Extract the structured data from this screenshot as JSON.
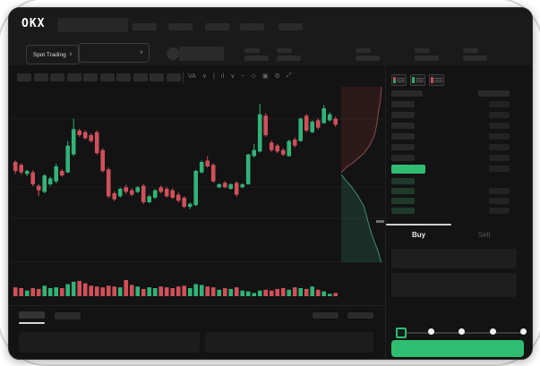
{
  "header": {
    "logo": "OKX",
    "market_selector_label": "Spot Trading"
  },
  "glyphs": {
    "chevron_down": "∨"
  },
  "toolbar": {
    "icons": [
      {
        "name": "indicator-label",
        "glyph": "VA"
      },
      {
        "name": "chevron-down-icon",
        "glyph": "∨"
      },
      {
        "name": "divider",
        "glyph": "|"
      },
      {
        "name": "candle-style-icon",
        "glyph": "ıl"
      },
      {
        "name": "chevron-down-icon",
        "glyph": "∨"
      },
      {
        "name": "line-type-icon",
        "glyph": "~"
      },
      {
        "name": "draw-icon",
        "glyph": "◇"
      },
      {
        "name": "camera-icon",
        "glyph": "▣"
      },
      {
        "name": "settings-icon",
        "glyph": "⚙"
      },
      {
        "name": "fullscreen-icon",
        "glyph": "⤢"
      }
    ]
  },
  "orderbook": {
    "view_modes": [
      "combined-book-icon",
      "bids-book-icon",
      "asks-book-icon"
    ],
    "ask_rows": 6,
    "bid_rows": 4
  },
  "trade_panel": {
    "buy_label": "Buy",
    "sell_label": "Sell",
    "slider_steps": 5
  },
  "colors": {
    "accent_green": "#2fbe71",
    "candle_up": "#32b377",
    "candle_down": "#d0505a",
    "bid_row_tint": "#1f3a2b",
    "ask_row_tint": "#282828",
    "amount_bar": "#232323",
    "depth_ask_fill": "rgba(140,50,55,0.22)",
    "depth_ask_line": "#8c4a50",
    "depth_bid_fill": "rgba(35,110,85,0.30)",
    "depth_bid_line": "#3f8f78"
  },
  "chart_data": {
    "type": "candlestick",
    "price_range": [
      0,
      100
    ],
    "grid": true,
    "legend": false,
    "candles": [
      [
        46.9,
        47.9,
        38.5,
        40.6
      ],
      [
        44.8,
        46.0,
        38.0,
        39.6
      ],
      [
        38.5,
        41.5,
        37.0,
        40.6
      ],
      [
        39.6,
        41.0,
        30.0,
        31.3
      ],
      [
        30.2,
        31.5,
        22.9,
        27.1
      ],
      [
        26.0,
        38.5,
        25.0,
        37.5
      ],
      [
        31.3,
        36.5,
        30.0,
        35.4
      ],
      [
        33.3,
        45.8,
        32.0,
        43.8
      ],
      [
        40.6,
        42.0,
        36.5,
        37.5
      ],
      [
        39.6,
        61.5,
        39.0,
        58.3
      ],
      [
        52.1,
        77.1,
        51.0,
        69.8
      ],
      [
        68.8,
        70.0,
        64.5,
        65.6
      ],
      [
        67.7,
        69.0,
        62.5,
        63.5
      ],
      [
        65.6,
        67.0,
        60.5,
        61.5
      ],
      [
        67.7,
        69.0,
        52.0,
        53.1
      ],
      [
        55.2,
        56.5,
        39.5,
        40.6
      ],
      [
        41.7,
        43.0,
        21.5,
        22.9
      ],
      [
        25.0,
        26.5,
        19.5,
        20.8
      ],
      [
        22.9,
        29.0,
        22.0,
        28.1
      ],
      [
        29.2,
        31.0,
        24.5,
        26.0
      ],
      [
        27.1,
        28.5,
        23.0,
        24.0
      ],
      [
        26.0,
        30.0,
        25.0,
        29.2
      ],
      [
        30.2,
        31.5,
        17.5,
        18.8
      ],
      [
        18.8,
        24.0,
        18.0,
        22.9
      ],
      [
        21.9,
        28.0,
        21.0,
        27.1
      ],
      [
        29.2,
        30.5,
        25.0,
        26.0
      ],
      [
        28.1,
        29.5,
        22.0,
        22.9
      ],
      [
        27.1,
        28.5,
        21.0,
        21.9
      ],
      [
        24.0,
        25.5,
        18.5,
        19.8
      ],
      [
        21.9,
        23.0,
        14.5,
        15.6
      ],
      [
        15.6,
        18.5,
        14.0,
        17.7
      ],
      [
        16.7,
        41.5,
        16.0,
        40.6
      ],
      [
        39.6,
        48.0,
        39.0,
        46.9
      ],
      [
        47.9,
        51.0,
        43.0,
        43.8
      ],
      [
        44.8,
        46.0,
        32.5,
        33.3
      ],
      [
        29.2,
        32.0,
        28.5,
        31.3
      ],
      [
        32.3,
        33.5,
        28.5,
        29.2
      ],
      [
        28.1,
        32.0,
        27.5,
        31.3
      ],
      [
        32.3,
        33.5,
        22.5,
        24.0
      ],
      [
        29.2,
        32.0,
        28.5,
        31.3
      ],
      [
        31.3,
        52.5,
        31.0,
        52.1
      ],
      [
        51.0,
        59.4,
        50.0,
        55.2
      ],
      [
        54.2,
        87.5,
        53.5,
        80.2
      ],
      [
        79.2,
        81.0,
        64.5,
        65.6
      ],
      [
        60.4,
        62.0,
        54.0,
        55.2
      ],
      [
        58.3,
        59.5,
        53.0,
        54.2
      ],
      [
        55.2,
        56.5,
        51.0,
        52.1
      ],
      [
        51.0,
        62.5,
        50.5,
        61.5
      ],
      [
        62.5,
        64.0,
        57.0,
        58.3
      ],
      [
        61.5,
        78.0,
        61.0,
        77.1
      ],
      [
        79.2,
        80.5,
        67.5,
        68.8
      ],
      [
        67.7,
        76.0,
        67.0,
        75.0
      ],
      [
        76.0,
        77.5,
        69.5,
        70.8
      ],
      [
        74.0,
        86.5,
        73.5,
        84.4
      ],
      [
        76.0,
        81.5,
        75.0,
        80.2
      ],
      [
        77.1,
        78.5,
        71.5,
        72.9
      ]
    ],
    "volume": [
      0.55,
      0.5,
      0.35,
      0.5,
      0.45,
      0.65,
      0.5,
      0.55,
      0.5,
      0.75,
      0.9,
      0.95,
      0.8,
      0.65,
      0.6,
      0.55,
      0.65,
      0.6,
      0.55,
      1.0,
      0.7,
      0.6,
      0.45,
      0.55,
      0.5,
      0.6,
      0.55,
      0.5,
      0.6,
      0.65,
      0.5,
      0.75,
      0.7,
      0.6,
      0.55,
      0.4,
      0.5,
      0.45,
      0.55,
      0.35,
      0.3,
      0.2,
      0.35,
      0.4,
      0.35,
      0.45,
      0.5,
      0.4,
      0.55,
      0.5,
      0.45,
      0.6,
      0.4,
      0.3,
      0.15,
      0.2
    ],
    "depth": {
      "ask_curve": [
        [
          0.98,
          0.0
        ],
        [
          0.95,
          0.08
        ],
        [
          0.9,
          0.15
        ],
        [
          0.86,
          0.22
        ],
        [
          0.8,
          0.28
        ],
        [
          0.7,
          0.33
        ],
        [
          0.55,
          0.38
        ],
        [
          0.3,
          0.43
        ],
        [
          0.12,
          0.46
        ],
        [
          0.0,
          0.49
        ]
      ],
      "bid_curve": [
        [
          0.0,
          0.5
        ],
        [
          0.1,
          0.53
        ],
        [
          0.25,
          0.57
        ],
        [
          0.4,
          0.62
        ],
        [
          0.55,
          0.68
        ],
        [
          0.62,
          0.74
        ],
        [
          0.7,
          0.81
        ],
        [
          0.8,
          0.88
        ],
        [
          0.9,
          0.94
        ],
        [
          0.97,
          1.0
        ]
      ]
    }
  }
}
